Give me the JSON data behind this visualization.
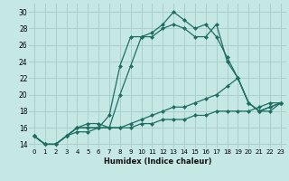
{
  "xlabel": "Humidex (Indice chaleur)",
  "background_color": "#c5e8e5",
  "grid_color": "#aacfcc",
  "line_color": "#1e6e62",
  "xlim": [
    -0.5,
    23.5
  ],
  "ylim": [
    13.5,
    31
  ],
  "yticks": [
    14,
    16,
    18,
    20,
    22,
    24,
    26,
    28,
    30
  ],
  "xticks": [
    0,
    1,
    2,
    3,
    4,
    5,
    6,
    7,
    8,
    9,
    10,
    11,
    12,
    13,
    14,
    15,
    16,
    17,
    18,
    19,
    20,
    21,
    22,
    23
  ],
  "series": [
    [
      15,
      14,
      14,
      15,
      16,
      16,
      16,
      17.5,
      23.5,
      27,
      27,
      27.5,
      28.5,
      30,
      29,
      28,
      28.5,
      27,
      24.5,
      22,
      19,
      18,
      18.5,
      19
    ],
    [
      15,
      14,
      14,
      15,
      16,
      16.5,
      16.5,
      16,
      20,
      23.5,
      27,
      27,
      28,
      28.5,
      28,
      27,
      27,
      28.5,
      24,
      22,
      19,
      18,
      18,
      19
    ],
    [
      15,
      14,
      14,
      15,
      16,
      16,
      16,
      16,
      16,
      16.5,
      17,
      17.5,
      18,
      18.5,
      18.5,
      19,
      19.5,
      20,
      21,
      22,
      19,
      18,
      18.5,
      19
    ],
    [
      15,
      14,
      14,
      15,
      15.5,
      15.5,
      16,
      16,
      16,
      16,
      16.5,
      16.5,
      17,
      17,
      17,
      17.5,
      17.5,
      18,
      18,
      18,
      18,
      18.5,
      19,
      19
    ]
  ]
}
